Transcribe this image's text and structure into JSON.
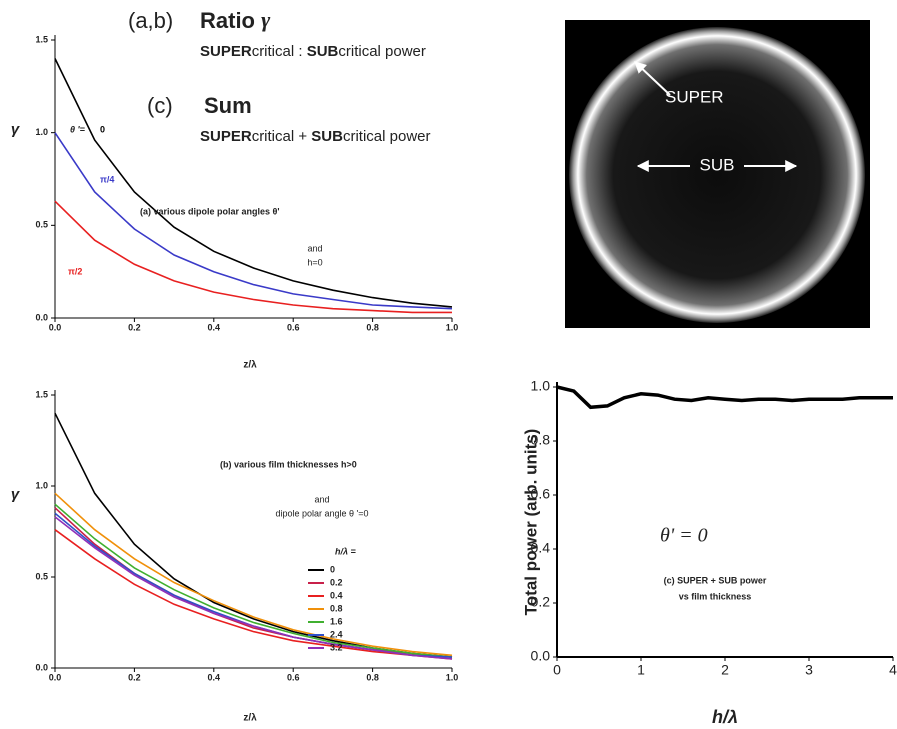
{
  "header": {
    "ab": "(a,b)",
    "ratio": "Ratio",
    "gamma": "γ",
    "line1": [
      "SUPER",
      "critical : ",
      "SUB",
      "critical power"
    ],
    "c": "(c)",
    "sum": "Sum",
    "line2": [
      "SUPER",
      "critical + ",
      "SUB",
      "critical power"
    ]
  },
  "image": {
    "super": "SUPER",
    "sub": "SUB"
  },
  "chart_data": [
    {
      "type": "line",
      "title": "(a)  various dipole polar angles θ'",
      "ylabel": "γ",
      "xlabel": "z/λ",
      "legend_title": "θ '=",
      "annotations": [
        "and",
        "h=0"
      ],
      "x": [
        0,
        0.1,
        0.2,
        0.3,
        0.4,
        0.5,
        0.6,
        0.7,
        0.8,
        0.9,
        1.0
      ],
      "series": [
        {
          "name": "0",
          "color": "#000000",
          "values": [
            1.4,
            0.96,
            0.68,
            0.49,
            0.36,
            0.27,
            0.2,
            0.15,
            0.11,
            0.08,
            0.06
          ]
        },
        {
          "name": "π/4",
          "color": "#3a3ac8",
          "values": [
            1.0,
            0.68,
            0.48,
            0.34,
            0.25,
            0.18,
            0.13,
            0.1,
            0.07,
            0.06,
            0.05
          ]
        },
        {
          "name": "π/2",
          "color": "#e82020",
          "values": [
            0.63,
            0.42,
            0.29,
            0.2,
            0.14,
            0.1,
            0.07,
            0.05,
            0.04,
            0.03,
            0.03
          ]
        }
      ],
      "xlim": [
        0,
        1
      ],
      "ylim": [
        0,
        1.5
      ],
      "xticks": [
        {
          "value": 0,
          "label": "0.0"
        },
        {
          "value": 0.2,
          "label": "0.2"
        },
        {
          "value": 0.4,
          "label": "0.4"
        },
        {
          "value": 0.6,
          "label": "0.6"
        },
        {
          "value": 0.8,
          "label": "0.8"
        },
        {
          "value": 1,
          "label": "1.0"
        }
      ],
      "yticks": [
        {
          "value": 0,
          "label": "0.0"
        },
        0.5,
        {
          "value": 1,
          "label": "1.0"
        },
        1.5
      ]
    },
    {
      "type": "line",
      "title": "(b) various film thicknesses  h>0",
      "ylabel": "γ",
      "xlabel": "z/λ",
      "legend_title": "h/λ =",
      "annotations": [
        "and",
        "dipole polar angle θ '=0"
      ],
      "x": [
        0,
        0.1,
        0.2,
        0.3,
        0.4,
        0.5,
        0.6,
        0.7,
        0.8,
        0.9,
        1.0
      ],
      "series": [
        {
          "name": "0",
          "color": "#000000",
          "values": [
            1.4,
            0.96,
            0.68,
            0.49,
            0.36,
            0.27,
            0.2,
            0.15,
            0.11,
            0.08,
            0.06
          ]
        },
        {
          "name": "0.2",
          "color": "#c8204a",
          "values": [
            0.88,
            0.68,
            0.52,
            0.4,
            0.3,
            0.22,
            0.17,
            0.13,
            0.1,
            0.08,
            0.06
          ]
        },
        {
          "name": "0.4",
          "color": "#e82020",
          "values": [
            0.76,
            0.6,
            0.46,
            0.35,
            0.27,
            0.2,
            0.15,
            0.12,
            0.09,
            0.07,
            0.05
          ]
        },
        {
          "name": "0.8",
          "color": "#f0900a",
          "values": [
            0.96,
            0.76,
            0.6,
            0.47,
            0.37,
            0.28,
            0.21,
            0.16,
            0.12,
            0.09,
            0.07
          ]
        },
        {
          "name": "1.6",
          "color": "#40b030",
          "values": [
            0.9,
            0.71,
            0.55,
            0.43,
            0.33,
            0.25,
            0.19,
            0.14,
            0.11,
            0.08,
            0.06
          ]
        },
        {
          "name": "2.4",
          "color": "#3050c8",
          "values": [
            0.85,
            0.67,
            0.52,
            0.4,
            0.31,
            0.23,
            0.17,
            0.13,
            0.1,
            0.07,
            0.06
          ]
        },
        {
          "name": "3.2",
          "color": "#9030b8",
          "values": [
            0.83,
            0.66,
            0.51,
            0.39,
            0.3,
            0.23,
            0.17,
            0.13,
            0.1,
            0.07,
            0.05
          ]
        }
      ],
      "xlim": [
        0,
        1
      ],
      "ylim": [
        0,
        1.5
      ],
      "xticks": [
        {
          "value": 0,
          "label": "0.0"
        },
        {
          "value": 0.2,
          "label": "0.2"
        },
        {
          "value": 0.4,
          "label": "0.4"
        },
        {
          "value": 0.6,
          "label": "0.6"
        },
        {
          "value": 0.8,
          "label": "0.8"
        },
        {
          "value": 1,
          "label": "1.0"
        }
      ],
      "yticks": [
        {
          "value": 0,
          "label": "0.0"
        },
        0.5,
        {
          "value": 1,
          "label": "1.0"
        },
        1.5
      ]
    },
    {
      "type": "line",
      "ylabel": "Total power (arb. units)",
      "xlabel": "h/λ",
      "annotations": [
        "θ' = 0",
        "(c)  SUPER + SUB power",
        "vs film thickness"
      ],
      "x": [
        0,
        0.2,
        0.4,
        0.6,
        0.8,
        1.0,
        1.2,
        1.4,
        1.6,
        1.8,
        2.0,
        2.2,
        2.4,
        2.6,
        2.8,
        3.0,
        3.2,
        3.4,
        3.6,
        3.8,
        4.0
      ],
      "series": [
        {
          "color": "#000000",
          "values": [
            1.0,
            0.985,
            0.925,
            0.93,
            0.96,
            0.975,
            0.97,
            0.955,
            0.95,
            0.96,
            0.955,
            0.95,
            0.955,
            0.955,
            0.95,
            0.955,
            0.955,
            0.955,
            0.96,
            0.96,
            0.96
          ]
        }
      ],
      "xlim": [
        0,
        4
      ],
      "ylim": [
        0,
        1.0
      ],
      "xticks": [
        0,
        1,
        2,
        3,
        4
      ],
      "yticks": [
        {
          "value": 0,
          "label": "0.0"
        },
        {
          "value": 0.2,
          "label": "0.2"
        },
        {
          "value": 0.4,
          "label": "0.4"
        },
        {
          "value": 0.6,
          "label": "0.6"
        },
        {
          "value": 0.8,
          "label": "0.8"
        },
        {
          "value": 1,
          "label": "1.0"
        }
      ]
    }
  ]
}
